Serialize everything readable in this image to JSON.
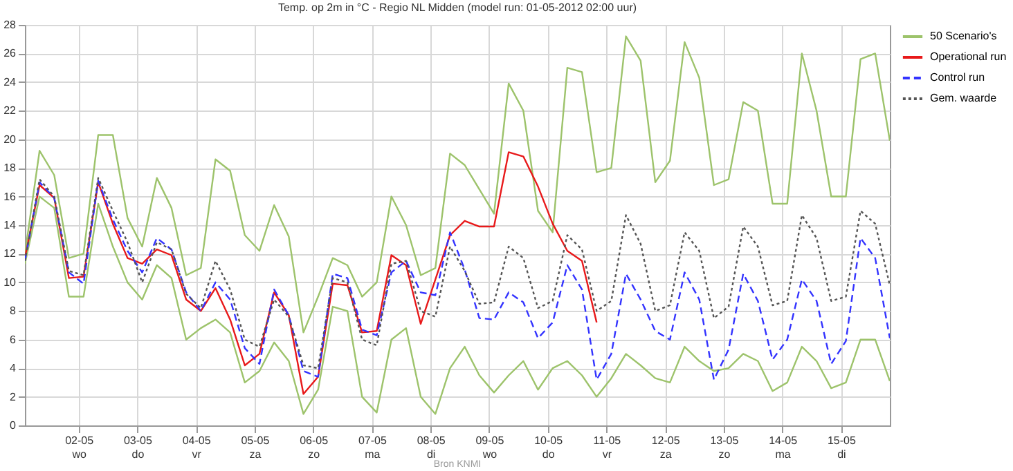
{
  "chart_data": {
    "type": "line",
    "title": "Temp. op 2m in °C - Regio NL Midden (model run: 01-05-2012 02:00 uur)",
    "x": [
      "2012-05-01T02:00",
      "2012-05-01T08:00",
      "2012-05-01T14:00",
      "2012-05-01T20:00",
      "2012-05-02T02:00",
      "2012-05-02T08:00",
      "2012-05-02T14:00",
      "2012-05-02T20:00",
      "2012-05-03T02:00",
      "2012-05-03T08:00",
      "2012-05-03T14:00",
      "2012-05-03T20:00",
      "2012-05-04T02:00",
      "2012-05-04T08:00",
      "2012-05-04T14:00",
      "2012-05-04T20:00",
      "2012-05-05T02:00",
      "2012-05-05T08:00",
      "2012-05-05T14:00",
      "2012-05-05T20:00",
      "2012-05-06T02:00",
      "2012-05-06T08:00",
      "2012-05-06T14:00",
      "2012-05-06T20:00",
      "2012-05-07T02:00",
      "2012-05-07T08:00",
      "2012-05-07T14:00",
      "2012-05-07T20:00",
      "2012-05-08T02:00",
      "2012-05-08T08:00",
      "2012-05-08T14:00",
      "2012-05-08T20:00",
      "2012-05-09T02:00",
      "2012-05-09T08:00",
      "2012-05-09T14:00",
      "2012-05-09T20:00",
      "2012-05-10T02:00",
      "2012-05-10T08:00",
      "2012-05-10T14:00",
      "2012-05-10T20:00",
      "2012-05-11T02:00",
      "2012-05-11T08:00",
      "2012-05-11T14:00",
      "2012-05-11T20:00",
      "2012-05-12T02:00",
      "2012-05-12T08:00",
      "2012-05-12T14:00",
      "2012-05-12T20:00",
      "2012-05-13T02:00",
      "2012-05-13T08:00",
      "2012-05-13T14:00",
      "2012-05-13T20:00",
      "2012-05-14T02:00",
      "2012-05-14T08:00",
      "2012-05-14T14:00",
      "2012-05-14T20:00",
      "2012-05-15T02:00",
      "2012-05-15T08:00",
      "2012-05-15T14:00",
      "2012-05-15T20:00"
    ],
    "series": [
      {
        "name": "50 Scenario's",
        "color": "#9dc36b",
        "line_style": "solid",
        "values": [
          12.0,
          19.2,
          17.5,
          11.7,
          12.0,
          20.3,
          20.3,
          14.5,
          12.5,
          17.3,
          15.2,
          10.5,
          11.0,
          18.6,
          17.8,
          13.3,
          12.2,
          15.4,
          13.2,
          6.5,
          9.0,
          11.7,
          11.2,
          9.0,
          10.0,
          16.0,
          14.0,
          10.5,
          11.0,
          19.0,
          18.2,
          16.5,
          14.8,
          23.9,
          22.0,
          15.0,
          13.5,
          25.0,
          24.7,
          17.7,
          18.0,
          27.2,
          25.5,
          17.0,
          18.5,
          26.8,
          24.3,
          16.8,
          17.2,
          22.6,
          22.0,
          15.5,
          15.5,
          26.0,
          22.0,
          16.0,
          16.0,
          25.6,
          26.0,
          19.9
        ]
      },
      {
        "color": "#9dc36b",
        "line_style": "solid",
        "values": [
          11.3,
          16.0,
          15.2,
          9.0,
          9.0,
          15.5,
          12.5,
          10.0,
          8.8,
          11.2,
          10.3,
          6.0,
          6.8,
          7.4,
          6.5,
          3.0,
          3.8,
          5.8,
          4.5,
          0.8,
          2.5,
          8.3,
          8.0,
          2.0,
          0.9,
          6.0,
          6.8,
          2.0,
          0.8,
          4.0,
          5.5,
          3.5,
          2.3,
          3.5,
          4.5,
          2.5,
          4.0,
          4.5,
          3.5,
          2.0,
          3.3,
          5.0,
          4.2,
          3.3,
          3.0,
          5.5,
          4.5,
          3.8,
          4.0,
          5.0,
          4.5,
          2.4,
          3.0,
          5.5,
          4.5,
          2.6,
          3.0,
          6.0,
          6.0,
          3.1
        ]
      },
      {
        "name": "Operational run",
        "color": "#e8191a",
        "line_style": "solid",
        "values": [
          11.7,
          16.8,
          15.9,
          10.3,
          10.4,
          17.0,
          14.1,
          11.7,
          11.3,
          12.3,
          11.9,
          8.8,
          8.0,
          9.6,
          7.4,
          4.2,
          5.0,
          9.3,
          7.7,
          2.2,
          3.4,
          9.9,
          9.8,
          6.5,
          6.6,
          11.9,
          11.2,
          7.1,
          10.2,
          13.3,
          14.3,
          13.9,
          13.9,
          19.1,
          18.8,
          16.7,
          14.1,
          12.2,
          11.5,
          7.2,
          null,
          null,
          null,
          null,
          null,
          null,
          null,
          null,
          null,
          null,
          null,
          null,
          null,
          null,
          null,
          null,
          null,
          null,
          null,
          null
        ]
      },
      {
        "name": "Control run",
        "color": "#3333ff",
        "line_style": "dashed",
        "values": [
          11.5,
          17.0,
          15.9,
          10.7,
          9.9,
          17.1,
          14.4,
          12.2,
          10.7,
          13.1,
          12.3,
          9.3,
          8.0,
          10.0,
          8.8,
          5.4,
          4.3,
          9.5,
          7.7,
          3.8,
          3.4,
          10.6,
          10.3,
          6.7,
          6.3,
          10.7,
          11.5,
          9.3,
          9.1,
          13.5,
          10.9,
          7.5,
          7.4,
          9.3,
          8.6,
          6.1,
          7.2,
          11.2,
          9.5,
          3.2,
          5.0,
          10.6,
          8.8,
          6.6,
          6.0,
          10.7,
          8.8,
          3.2,
          5.3,
          10.6,
          8.7,
          4.6,
          6.0,
          10.2,
          8.7,
          4.3,
          5.9,
          13.1,
          11.7,
          6.1
        ]
      },
      {
        "name": "Gem. waarde",
        "color": "#555555",
        "line_style": "dotted",
        "values": [
          11.5,
          17.2,
          16.0,
          10.8,
          10.5,
          17.3,
          15.0,
          12.8,
          10.0,
          12.8,
          12.3,
          9.2,
          8.2,
          11.5,
          9.5,
          6.0,
          5.5,
          8.8,
          7.6,
          4.2,
          4.0,
          10.3,
          10.0,
          6.0,
          5.6,
          11.3,
          11.5,
          8.0,
          7.6,
          12.5,
          10.8,
          8.5,
          8.6,
          12.5,
          11.7,
          8.2,
          8.7,
          13.3,
          12.3,
          8.0,
          8.7,
          14.7,
          12.7,
          8.0,
          8.4,
          13.5,
          12.2,
          7.5,
          8.3,
          13.9,
          12.5,
          8.4,
          8.7,
          14.7,
          13.1,
          8.7,
          9.0,
          15.0,
          14.1,
          9.8
        ]
      }
    ],
    "xlim": [
      "2012-05-01T02:00",
      "2012-05-15T20:00"
    ],
    "xticks": [
      {
        "value": "2012-05-02",
        "label": "02-05\nwo"
      },
      {
        "value": "2012-05-03",
        "label": "03-05\ndo"
      },
      {
        "value": "2012-05-04",
        "label": "04-05\nvr"
      },
      {
        "value": "2012-05-05",
        "label": "05-05\nza"
      },
      {
        "value": "2012-05-06",
        "label": "06-05\nzo"
      },
      {
        "value": "2012-05-07",
        "label": "07-05\nma"
      },
      {
        "value": "2012-05-08",
        "label": "08-05\ndi"
      },
      {
        "value": "2012-05-09",
        "label": "09-05\nwo"
      },
      {
        "value": "2012-05-10",
        "label": "10-05\ndo"
      },
      {
        "value": "2012-05-11",
        "label": "11-05\nvr"
      },
      {
        "value": "2012-05-12",
        "label": "12-05\nza"
      },
      {
        "value": "2012-05-13",
        "label": "13-05\nzo"
      },
      {
        "value": "2012-05-14",
        "label": "14-05\nma"
      },
      {
        "value": "2012-05-15",
        "label": "15-05\ndi"
      }
    ],
    "ylim": [
      0,
      28
    ],
    "yticks": [
      0,
      2,
      4,
      6,
      8,
      10,
      12,
      14,
      16,
      18,
      20,
      22,
      24,
      26,
      28
    ],
    "grid": true,
    "legend": "top right",
    "marker": "none",
    "annotations": [
      "Bron KNMI"
    ]
  }
}
